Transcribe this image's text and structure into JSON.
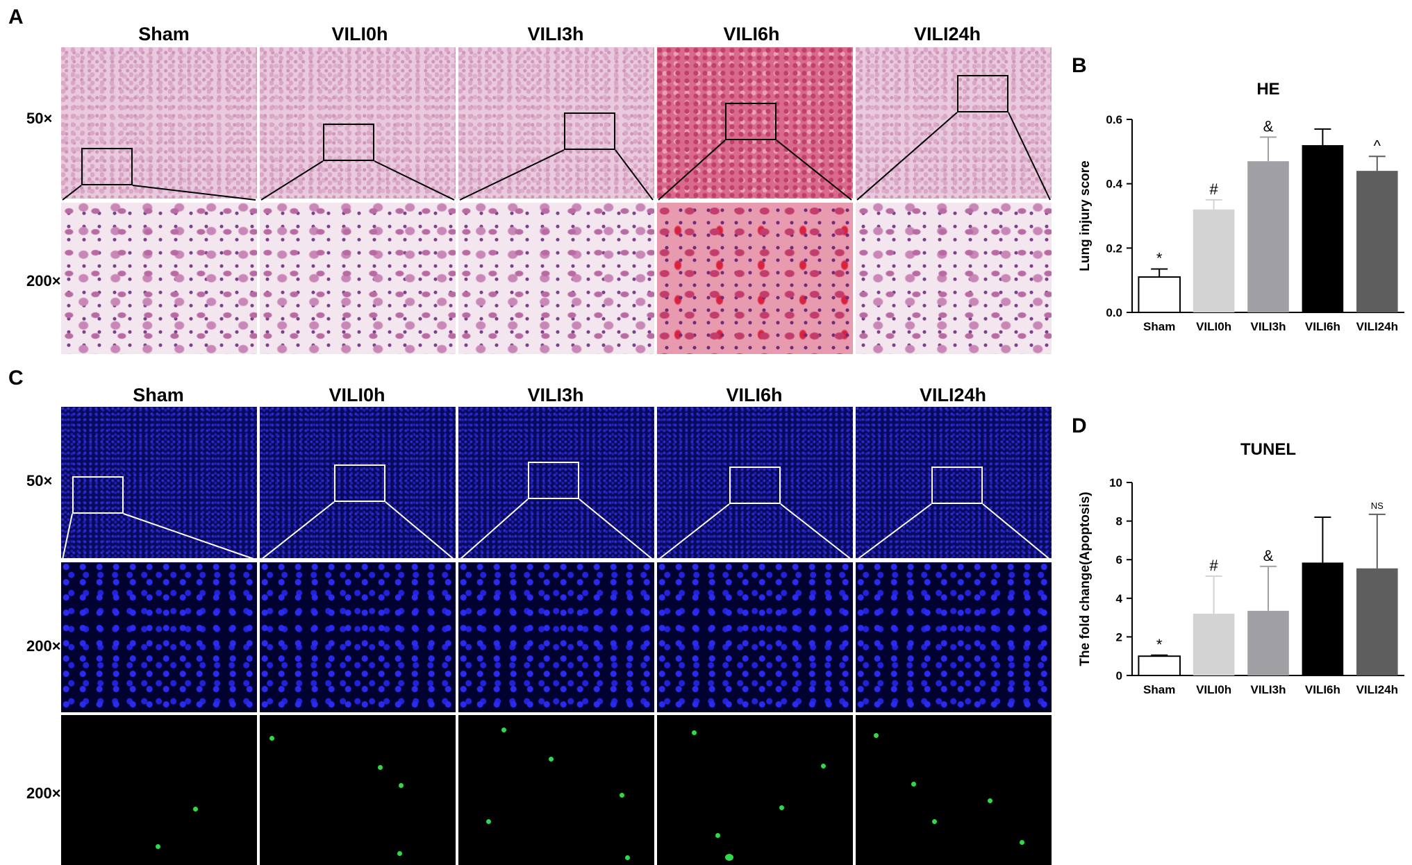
{
  "panels": {
    "a": "A",
    "b": "B",
    "c": "C",
    "d": "D"
  },
  "columns": [
    "Sham",
    "VILI0h",
    "VILI3h",
    "VILI6h",
    "VILI24h"
  ],
  "magnifications": {
    "low": "50×",
    "high": "200×"
  },
  "colors": {
    "he_tissue": "#e9c9dd",
    "he_hemorrhage": "#d96a8c",
    "dapi": "#2a2ad0",
    "tunel": "#31d84a",
    "bar_sham": "#ffffff",
    "bar_vili0h": "#d3d3d3",
    "bar_vili3h": "#a0a0a4",
    "bar_vili6h": "#000000",
    "bar_vili24h": "#5e5e5e"
  },
  "chart_data": [
    {
      "type": "bar",
      "title": "HE",
      "ylabel": "Lung injury score",
      "xlabel": "",
      "categories": [
        "Sham",
        "VILI0h",
        "VILI3h",
        "VILI6h",
        "VILI24h"
      ],
      "values": [
        0.11,
        0.32,
        0.47,
        0.52,
        0.44
      ],
      "errors": [
        0.025,
        0.03,
        0.075,
        0.05,
        0.045
      ],
      "significance": [
        "*",
        "#",
        "&",
        "",
        "^"
      ],
      "ylim": [
        0,
        0.6
      ],
      "yticks": [
        "0.0",
        "0.2",
        "0.4",
        "0.6"
      ],
      "grid": false
    },
    {
      "type": "bar",
      "title": "TUNEL",
      "ylabel": "The fold change(Apoptosis)",
      "xlabel": "",
      "categories": [
        "Sham",
        "VILI0h",
        "VILI3h",
        "VILI6h",
        "VILI24h"
      ],
      "values": [
        1.0,
        3.2,
        3.35,
        5.85,
        5.55
      ],
      "errors": [
        0.05,
        1.95,
        2.3,
        2.35,
        2.8
      ],
      "significance": [
        "*",
        "#",
        "&",
        "",
        "NS"
      ],
      "ylim": [
        0,
        10
      ],
      "yticks": [
        "0",
        "2",
        "4",
        "6",
        "8",
        "10"
      ],
      "grid": false
    }
  ]
}
